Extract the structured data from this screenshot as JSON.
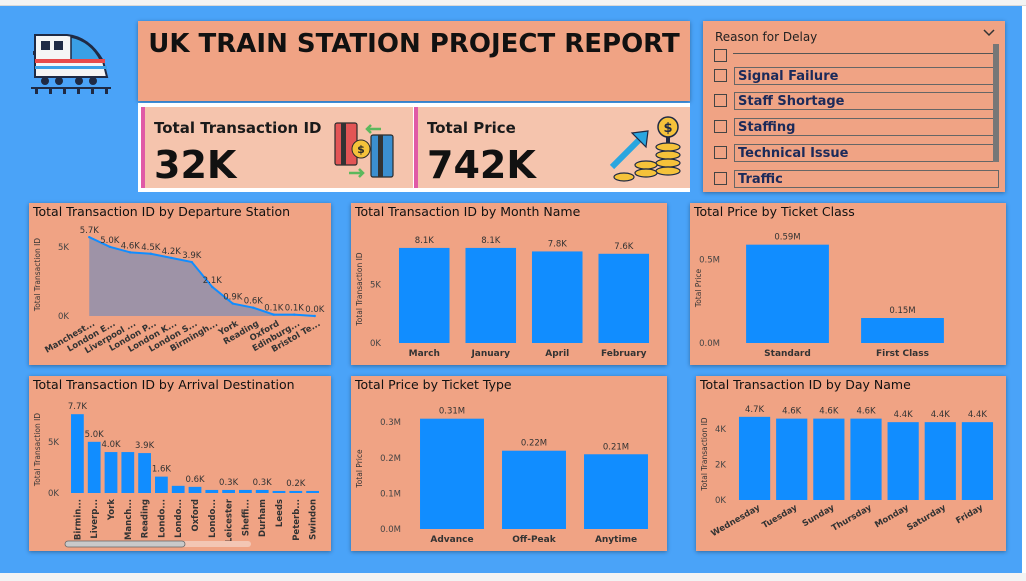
{
  "report": {
    "title": "UK TRAIN STATION PROJECT REPORT"
  },
  "kpis": [
    {
      "label": "Total Transaction ID",
      "value": "32K",
      "icon": "card-exchange-icon"
    },
    {
      "label": "Total Price",
      "value": "742K",
      "icon": "coins-growth-icon"
    }
  ],
  "slicer": {
    "label": "Reason for Delay",
    "items": [
      "",
      "Signal Failure",
      "Staff Shortage",
      "Staffing",
      "Technical Issue",
      "Traffic"
    ],
    "icon": "chevron-down-icon"
  },
  "colors": {
    "background": "#4aa3f8",
    "panel": "#f0a384",
    "bar": "#118dff",
    "area_fill": "#8f91ad",
    "accent": "#e05aa6"
  },
  "chart_data": [
    {
      "id": "departure",
      "type": "area",
      "title": "Total Transaction ID by Departure Station",
      "xlabel": "",
      "ylabel": "Total Transaction ID",
      "categories": [
        "Manchest...",
        "London E...",
        "Liverpool ...",
        "London P...",
        "London K...",
        "London S...",
        "Birmingh...",
        "York",
        "Reading",
        "Oxford",
        "Edinburg...",
        "Bristol Te..."
      ],
      "values": [
        5700,
        5000,
        4600,
        4500,
        4200,
        3900,
        2100,
        900,
        600,
        100,
        100,
        0
      ],
      "labels": [
        "5.7K",
        "5.0K",
        "4.6K",
        "4.5K",
        "4.2K",
        "3.9K",
        "2.1K",
        "0.9K",
        "0.6K",
        "0.1K",
        "0.1K",
        "0.0K"
      ],
      "yticks": [
        {
          "v": 0,
          "t": "0K"
        },
        {
          "v": 5000,
          "t": "5K"
        }
      ],
      "ylim": [
        0,
        6000
      ]
    },
    {
      "id": "month",
      "type": "bar",
      "title": "Total Transaction ID by Month Name",
      "xlabel": "",
      "ylabel": "Total Transaction ID",
      "categories": [
        "March",
        "January",
        "April",
        "February"
      ],
      "values": [
        8100,
        8100,
        7800,
        7600
      ],
      "labels": [
        "8.1K",
        "8.1K",
        "7.8K",
        "7.6K"
      ],
      "yticks": [
        {
          "v": 0,
          "t": "0K"
        },
        {
          "v": 5000,
          "t": "5K"
        }
      ],
      "ylim": [
        0,
        9200
      ]
    },
    {
      "id": "class",
      "type": "bar",
      "title": "Total Price by Ticket Class",
      "xlabel": "",
      "ylabel": "Total Price",
      "categories": [
        "Standard",
        "First Class"
      ],
      "values": [
        0.59,
        0.15
      ],
      "labels": [
        "0.59M",
        "0.15M"
      ],
      "yticks": [
        {
          "v": 0,
          "t": "0.0M"
        },
        {
          "v": 0.5,
          "t": "0.5M"
        }
      ],
      "ylim": [
        0,
        0.66
      ]
    },
    {
      "id": "arrival",
      "type": "bar",
      "title": "Total Transaction ID by Arrival Destination",
      "xlabel": "",
      "ylabel": "Total Transaction ID",
      "categories": [
        "Birmin...",
        "Liverp...",
        "York",
        "Manch...",
        "Reading",
        "Londo...",
        "Londo...",
        "Oxford",
        "Londo...",
        "Leicester",
        "Sheffi...",
        "Durham",
        "Leeds",
        "Peterb...",
        "Swindon"
      ],
      "values": [
        7700,
        5000,
        4000,
        4000,
        3900,
        1600,
        700,
        600,
        300,
        300,
        300,
        300,
        200,
        200,
        200
      ],
      "labels": [
        "7.7K",
        "5.0K",
        "4.0K",
        "",
        "3.9K",
        "1.6K",
        "",
        "0.6K",
        "",
        "0.3K",
        "",
        "0.3K",
        "",
        "0.2K",
        ""
      ],
      "yticks": [
        {
          "v": 0,
          "t": "0K"
        },
        {
          "v": 5000,
          "t": "5K"
        }
      ],
      "ylim": [
        0,
        8500
      ]
    },
    {
      "id": "tickettype",
      "type": "bar",
      "title": "Total Price by Ticket Type",
      "xlabel": "",
      "ylabel": "Total Price",
      "categories": [
        "Advance",
        "Off-Peak",
        "Anytime"
      ],
      "values": [
        0.31,
        0.22,
        0.21
      ],
      "labels": [
        "0.31M",
        "0.22M",
        "0.21M"
      ],
      "yticks": [
        {
          "v": 0,
          "t": "0.0M"
        },
        {
          "v": 0.1,
          "t": "0.1M"
        },
        {
          "v": 0.2,
          "t": "0.2M"
        },
        {
          "v": 0.3,
          "t": "0.3M"
        }
      ],
      "ylim": [
        0,
        0.34
      ]
    },
    {
      "id": "day",
      "type": "bar",
      "title": "Total Transaction ID by Day Name",
      "xlabel": "",
      "ylabel": "Total Transaction ID",
      "categories": [
        "Wednesday",
        "Tuesday",
        "Sunday",
        "Thursday",
        "Monday",
        "Saturday",
        "Friday"
      ],
      "values": [
        4700,
        4600,
        4600,
        4600,
        4400,
        4400,
        4400
      ],
      "labels": [
        "4.7K",
        "4.6K",
        "4.6K",
        "4.6K",
        "4.4K",
        "4.4K",
        "4.4K"
      ],
      "yticks": [
        {
          "v": 0,
          "t": "0K"
        },
        {
          "v": 2000,
          "t": "2K"
        },
        {
          "v": 4000,
          "t": "4K"
        }
      ],
      "ylim": [
        0,
        5200
      ]
    }
  ]
}
